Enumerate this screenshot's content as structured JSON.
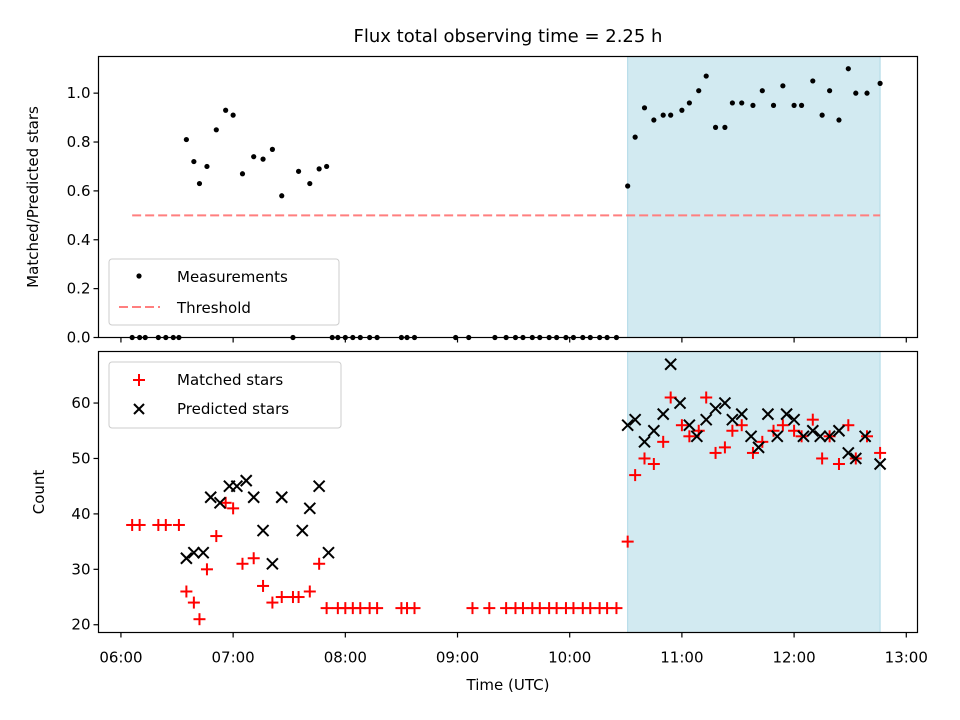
{
  "chart_data": [
    {
      "type": "scatter",
      "title": "Flux total observing time = 2.25 h",
      "xlabel": "",
      "ylabel": "Matched/Predicted stars",
      "ylim": [
        0,
        1.15
      ],
      "yticks": [
        "0.0",
        "0.2",
        "0.4",
        "0.6",
        "0.8",
        "1.0"
      ],
      "xlim": [
        "05:48",
        "13:06"
      ],
      "shaded_region": {
        "start": "10:31",
        "end": "12:46",
        "color": "#add8e6"
      },
      "legend": {
        "placement": "lower-left",
        "entries": [
          "Measurements",
          "Threshold"
        ]
      },
      "threshold": {
        "name": "Threshold",
        "value": 0.5,
        "x_start": "06:06",
        "x_end": "12:46",
        "color": "#ff7f7f"
      },
      "series": [
        {
          "name": "Measurements",
          "color": "#000000",
          "points": [
            [
              "06:06",
              0.0
            ],
            [
              "06:10",
              0.0
            ],
            [
              "06:13",
              0.0
            ],
            [
              "06:20",
              0.0
            ],
            [
              "06:24",
              0.0
            ],
            [
              "06:28",
              0.0
            ],
            [
              "06:31",
              0.0
            ],
            [
              "06:35",
              0.81
            ],
            [
              "06:39",
              0.72
            ],
            [
              "06:42",
              0.63
            ],
            [
              "06:46",
              0.7
            ],
            [
              "06:51",
              0.85
            ],
            [
              "06:56",
              0.93
            ],
            [
              "07:00",
              0.91
            ],
            [
              "07:05",
              0.67
            ],
            [
              "07:11",
              0.74
            ],
            [
              "07:16",
              0.73
            ],
            [
              "07:21",
              0.77
            ],
            [
              "07:26",
              0.58
            ],
            [
              "07:32",
              0.0
            ],
            [
              "07:35",
              0.68
            ],
            [
              "07:41",
              0.63
            ],
            [
              "07:46",
              0.69
            ],
            [
              "07:50",
              0.7
            ],
            [
              "07:53",
              0.0
            ],
            [
              "07:56",
              0.0
            ],
            [
              "08:00",
              0.0
            ],
            [
              "08:04",
              0.0
            ],
            [
              "08:08",
              0.0
            ],
            [
              "08:13",
              0.0
            ],
            [
              "08:17",
              0.0
            ],
            [
              "08:30",
              0.0
            ],
            [
              "08:33",
              0.0
            ],
            [
              "08:37",
              0.0
            ],
            [
              "08:59",
              0.0
            ],
            [
              "09:06",
              0.0
            ],
            [
              "09:20",
              0.0
            ],
            [
              "09:26",
              0.0
            ],
            [
              "09:31",
              0.0
            ],
            [
              "09:35",
              0.0
            ],
            [
              "09:40",
              0.0
            ],
            [
              "09:44",
              0.0
            ],
            [
              "09:49",
              0.0
            ],
            [
              "09:53",
              0.0
            ],
            [
              "09:58",
              0.0
            ],
            [
              "10:02",
              0.0
            ],
            [
              "10:07",
              0.0
            ],
            [
              "10:11",
              0.0
            ],
            [
              "10:16",
              0.0
            ],
            [
              "10:20",
              0.0
            ],
            [
              "10:25",
              0.0
            ],
            [
              "10:31",
              0.62
            ],
            [
              "10:35",
              0.82
            ],
            [
              "10:40",
              0.94
            ],
            [
              "10:45",
              0.89
            ],
            [
              "10:50",
              0.91
            ],
            [
              "10:54",
              0.91
            ],
            [
              "11:00",
              0.93
            ],
            [
              "11:04",
              0.96
            ],
            [
              "11:09",
              1.01
            ],
            [
              "11:13",
              1.07
            ],
            [
              "11:18",
              0.86
            ],
            [
              "11:23",
              0.86
            ],
            [
              "11:27",
              0.96
            ],
            [
              "11:32",
              0.96
            ],
            [
              "11:38",
              0.95
            ],
            [
              "11:43",
              1.01
            ],
            [
              "11:49",
              0.95
            ],
            [
              "11:54",
              1.03
            ],
            [
              "12:00",
              0.95
            ],
            [
              "12:04",
              0.95
            ],
            [
              "12:10",
              1.05
            ],
            [
              "12:15",
              0.91
            ],
            [
              "12:19",
              1.01
            ],
            [
              "12:24",
              0.89
            ],
            [
              "12:29",
              1.1
            ],
            [
              "12:33",
              1.0
            ],
            [
              "12:39",
              1.0
            ],
            [
              "12:46",
              1.04
            ]
          ]
        }
      ]
    },
    {
      "type": "scatter",
      "title": "",
      "xlabel": "Time (UTC)",
      "ylabel": "Count",
      "ylim": [
        18.6,
        69.3
      ],
      "yticks": [
        "20",
        "30",
        "40",
        "50",
        "60"
      ],
      "xlim": [
        "05:48",
        "13:06"
      ],
      "xticks": [
        "06:00",
        "07:00",
        "08:00",
        "09:00",
        "10:00",
        "11:00",
        "12:00",
        "13:00"
      ],
      "shaded_region": {
        "start": "10:31",
        "end": "12:46",
        "color": "#add8e6"
      },
      "legend": {
        "placement": "upper-left",
        "entries": [
          "Matched stars",
          "Predicted stars"
        ]
      },
      "series": [
        {
          "name": "Matched stars",
          "marker": "plus",
          "color": "#ff0000",
          "points": [
            [
              "06:06",
              38
            ],
            [
              "06:10",
              38
            ],
            [
              "06:20",
              38
            ],
            [
              "06:24",
              38
            ],
            [
              "06:31",
              38
            ],
            [
              "06:35",
              26
            ],
            [
              "06:39",
              24
            ],
            [
              "06:42",
              21
            ],
            [
              "06:46",
              30
            ],
            [
              "06:51",
              36
            ],
            [
              "06:56",
              42
            ],
            [
              "07:00",
              41
            ],
            [
              "07:05",
              31
            ],
            [
              "07:11",
              32
            ],
            [
              "07:16",
              27
            ],
            [
              "07:21",
              24
            ],
            [
              "07:26",
              25
            ],
            [
              "07:32",
              25
            ],
            [
              "07:35",
              25
            ],
            [
              "07:41",
              26
            ],
            [
              "07:46",
              31
            ],
            [
              "07:50",
              23
            ],
            [
              "07:56",
              23
            ],
            [
              "08:00",
              23
            ],
            [
              "08:04",
              23
            ],
            [
              "08:08",
              23
            ],
            [
              "08:13",
              23
            ],
            [
              "08:17",
              23
            ],
            [
              "08:30",
              23
            ],
            [
              "08:33",
              23
            ],
            [
              "08:37",
              23
            ],
            [
              "09:08",
              23
            ],
            [
              "09:17",
              23
            ],
            [
              "09:26",
              23
            ],
            [
              "09:31",
              23
            ],
            [
              "09:35",
              23
            ],
            [
              "09:40",
              23
            ],
            [
              "09:44",
              23
            ],
            [
              "09:49",
              23
            ],
            [
              "09:53",
              23
            ],
            [
              "09:58",
              23
            ],
            [
              "10:02",
              23
            ],
            [
              "10:07",
              23
            ],
            [
              "10:11",
              23
            ],
            [
              "10:16",
              23
            ],
            [
              "10:20",
              23
            ],
            [
              "10:25",
              23
            ],
            [
              "10:31",
              35
            ],
            [
              "10:35",
              47
            ],
            [
              "10:40",
              50
            ],
            [
              "10:45",
              49
            ],
            [
              "10:50",
              53
            ],
            [
              "10:54",
              61
            ],
            [
              "11:00",
              56
            ],
            [
              "11:04",
              54
            ],
            [
              "11:09",
              55
            ],
            [
              "11:13",
              61
            ],
            [
              "11:18",
              51
            ],
            [
              "11:23",
              52
            ],
            [
              "11:27",
              55
            ],
            [
              "11:32",
              56
            ],
            [
              "11:38",
              51
            ],
            [
              "11:43",
              53
            ],
            [
              "11:49",
              55
            ],
            [
              "11:54",
              56
            ],
            [
              "12:00",
              55
            ],
            [
              "12:04",
              54
            ],
            [
              "12:10",
              57
            ],
            [
              "12:15",
              50
            ],
            [
              "12:19",
              54
            ],
            [
              "12:24",
              49
            ],
            [
              "12:29",
              56
            ],
            [
              "12:33",
              50
            ],
            [
              "12:39",
              54
            ],
            [
              "12:46",
              51
            ]
          ]
        },
        {
          "name": "Predicted stars",
          "marker": "x",
          "color": "#000000",
          "points": [
            [
              "06:35",
              32
            ],
            [
              "06:39",
              33
            ],
            [
              "06:44",
              33
            ],
            [
              "06:48",
              43
            ],
            [
              "06:53",
              42
            ],
            [
              "06:58",
              45
            ],
            [
              "07:02",
              45
            ],
            [
              "07:07",
              46
            ],
            [
              "07:11",
              43
            ],
            [
              "07:16",
              37
            ],
            [
              "07:21",
              31
            ],
            [
              "07:26",
              43
            ],
            [
              "07:37",
              37
            ],
            [
              "07:41",
              41
            ],
            [
              "07:46",
              45
            ],
            [
              "07:51",
              33
            ],
            [
              "10:31",
              56
            ],
            [
              "10:35",
              57
            ],
            [
              "10:40",
              53
            ],
            [
              "10:45",
              55
            ],
            [
              "10:50",
              58
            ],
            [
              "10:54",
              67
            ],
            [
              "10:59",
              60
            ],
            [
              "11:04",
              56
            ],
            [
              "11:08",
              54
            ],
            [
              "11:13",
              57
            ],
            [
              "11:18",
              59
            ],
            [
              "11:23",
              60
            ],
            [
              "11:27",
              57
            ],
            [
              "11:32",
              58
            ],
            [
              "11:37",
              54
            ],
            [
              "11:41",
              52
            ],
            [
              "11:46",
              58
            ],
            [
              "11:51",
              54
            ],
            [
              "11:56",
              58
            ],
            [
              "12:00",
              57
            ],
            [
              "12:05",
              54
            ],
            [
              "12:10",
              55
            ],
            [
              "12:14",
              54
            ],
            [
              "12:19",
              54
            ],
            [
              "12:24",
              55
            ],
            [
              "12:29",
              51
            ],
            [
              "12:33",
              50
            ],
            [
              "12:38",
              54
            ],
            [
              "12:46",
              49
            ]
          ]
        }
      ]
    }
  ]
}
